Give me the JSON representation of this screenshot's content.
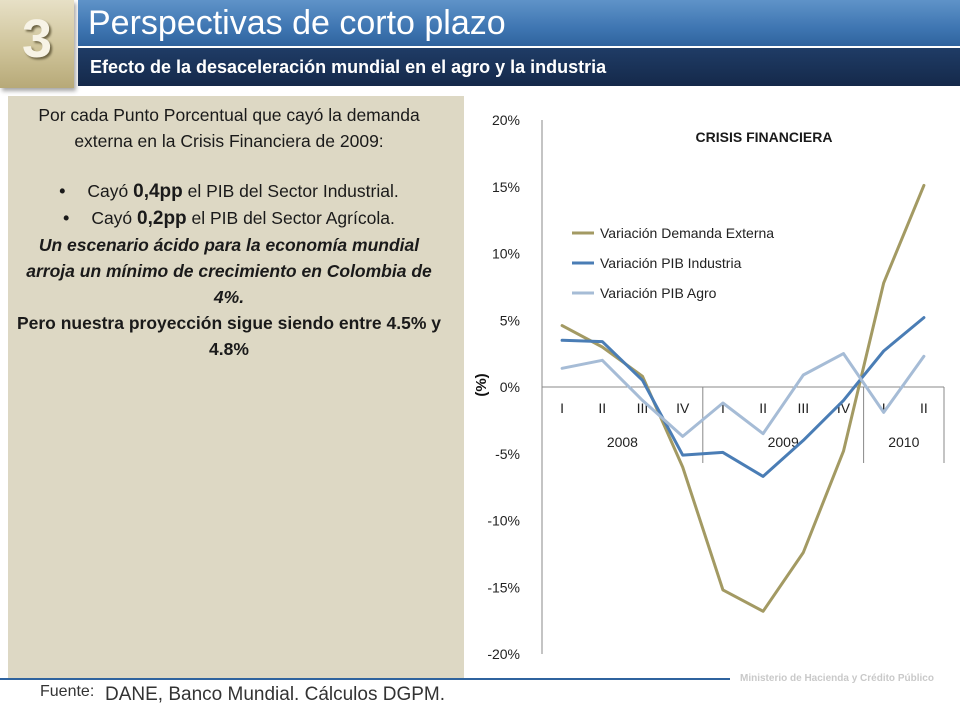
{
  "header": {
    "section_number": "3",
    "title": "Perspectivas de corto plazo",
    "subtitle": "Efecto de la desaceleración mundial en el agro y la industria"
  },
  "panel": {
    "intro": "Por cada Punto Porcentual que cayó la demanda externa en la Crisis Financiera de 2009:",
    "bullet_1": {
      "prefix": "Cayó ",
      "value": "0,4pp",
      "suffix": " el PIB del Sector Industrial."
    },
    "bullet_2": {
      "prefix": "Cayó ",
      "value": "0,2pp",
      "suffix": " el PIB del Sector Agrícola."
    },
    "italic_note": "Un escenario ácido para la economía mundial arroja un mínimo de crecimiento en Colombia de 4%.",
    "bold_note": "Pero nuestra proyección sigue siendo entre 4.5% y 4.8%",
    "bullet_char": "•"
  },
  "footer": {
    "source_label": "Fuente:",
    "source_text": "DANE, Banco Mundial. Cálculos DGPM.",
    "ministry": "Ministerio de Hacienda y Crédito Público"
  },
  "chart_data": {
    "type": "line",
    "annotation": "CRISIS FINANCIERA",
    "ylabel": "(%)",
    "ylim": [
      -20,
      20
    ],
    "y_ticks": [
      "-20%",
      "-15%",
      "-10%",
      "-5%",
      "0%",
      "5%",
      "10%",
      "15%",
      "20%"
    ],
    "y_tick_values": [
      -20,
      -15,
      -10,
      -5,
      0,
      5,
      10,
      15,
      20
    ],
    "categories": [
      "I",
      "II",
      "III",
      "IV",
      "I",
      "II",
      "III",
      "IV",
      "I",
      "II"
    ],
    "groups": [
      {
        "label": "2008",
        "count": 4
      },
      {
        "label": "2009",
        "count": 4
      },
      {
        "label": "2010",
        "count": 2
      }
    ],
    "legend_position": "top-left",
    "series": [
      {
        "name": "Variación Demanda Externa",
        "color": "#a39a63",
        "values": [
          4.6,
          3.0,
          0.8,
          -6.0,
          -15.2,
          -16.8,
          -12.4,
          -4.8,
          7.8,
          15.1
        ]
      },
      {
        "name": "Variación PIB Industria",
        "color": "#4a7db5",
        "values": [
          3.5,
          3.4,
          0.5,
          -5.1,
          -4.9,
          -6.7,
          -4.0,
          -1.0,
          2.7,
          5.2
        ]
      },
      {
        "name": "Variación PIB Agro",
        "color": "#a6bcd6",
        "values": [
          1.4,
          2.0,
          -1.0,
          -3.7,
          -1.2,
          -3.5,
          0.9,
          2.5,
          -1.9,
          2.3
        ]
      }
    ]
  }
}
